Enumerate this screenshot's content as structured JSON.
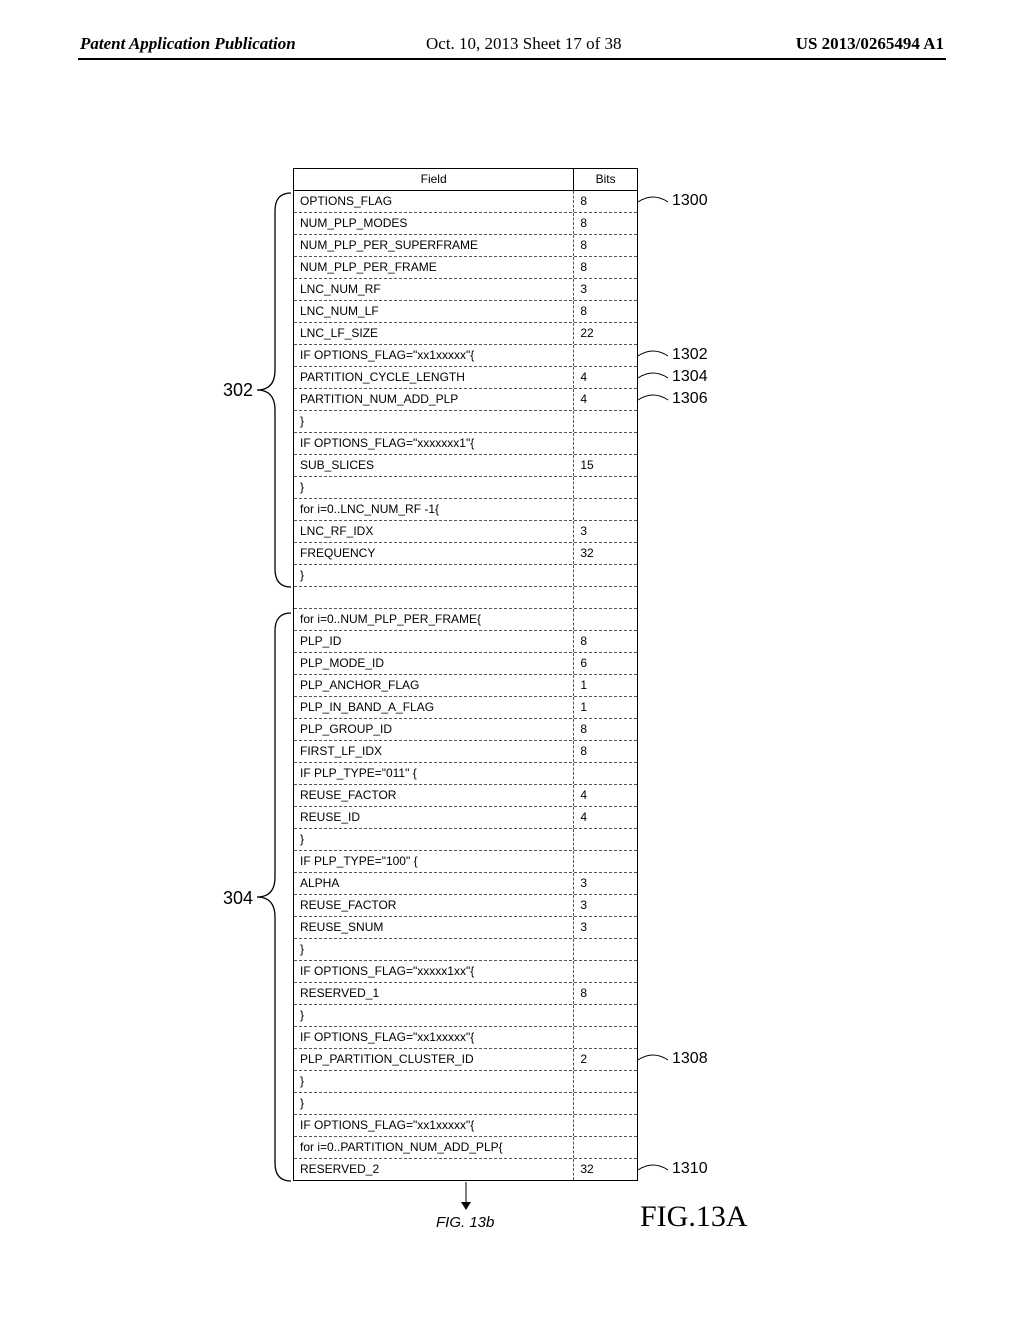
{
  "header": {
    "left": "Patent Application Publication",
    "mid": "Oct. 10, 2013  Sheet 17 of 38",
    "right": "US 2013/0265494 A1"
  },
  "braces": {
    "left1": "302",
    "left2": "304"
  },
  "callouts": {
    "r0": "1300",
    "r1": "1302",
    "r2": "1304",
    "r3": "1306",
    "r4": "1308",
    "r5": "1310"
  },
  "columns": {
    "field": "Field",
    "bits": "Bits"
  },
  "rows": [
    {
      "f": "OPTIONS_FLAG",
      "b": "8"
    },
    {
      "f": "NUM_PLP_MODES",
      "b": "8"
    },
    {
      "f": "NUM_PLP_PER_SUPERFRAME",
      "b": "8"
    },
    {
      "f": "NUM_PLP_PER_FRAME",
      "b": "8"
    },
    {
      "f": "LNC_NUM_RF",
      "b": "3"
    },
    {
      "f": "LNC_NUM_LF",
      "b": "8"
    },
    {
      "f": "LNC_LF_SIZE",
      "b": "22"
    },
    {
      "f": "IF OPTIONS_FLAG=\"xx1xxxxx\"{",
      "b": ""
    },
    {
      "f": "PARTITION_CYCLE_LENGTH",
      "b": "4"
    },
    {
      "f": "PARTITION_NUM_ADD_PLP",
      "b": "4"
    },
    {
      "f": "}",
      "b": ""
    },
    {
      "f": "IF    OPTIONS_FLAG=\"xxxxxxx1\"{",
      "b": ""
    },
    {
      "f": "SUB_SLICES",
      "b": "15"
    },
    {
      "f": "}",
      "b": ""
    },
    {
      "f": "for i=0..LNC_NUM_RF  -1{",
      "b": ""
    },
    {
      "f": "LNC_RF_IDX",
      "b": "3"
    },
    {
      "f": "FREQUENCY",
      "b": "32"
    },
    {
      "f": "}",
      "b": ""
    },
    {
      "f": "",
      "b": ""
    },
    {
      "f": "for i=0..NUM_PLP_PER_FRAME{",
      "b": ""
    },
    {
      "f": "PLP_ID",
      "b": "8"
    },
    {
      "f": "PLP_MODE_ID",
      "b": "6"
    },
    {
      "f": "PLP_ANCHOR_FLAG",
      "b": "1"
    },
    {
      "f": "PLP_IN_BAND_A_FLAG",
      "b": "1"
    },
    {
      "f": "PLP_GROUP_ID",
      "b": "8"
    },
    {
      "f": "FIRST_LF_IDX",
      "b": "8"
    },
    {
      "f": "IF PLP_TYPE=\"011\" {",
      "b": ""
    },
    {
      "f": "REUSE_FACTOR",
      "b": "4"
    },
    {
      "f": "REUSE_ID",
      "b": "4"
    },
    {
      "f": "}",
      "b": ""
    },
    {
      "f": "IF PLP_TYPE=\"100\" {",
      "b": ""
    },
    {
      "f": "ALPHA",
      "b": "3"
    },
    {
      "f": "REUSE_FACTOR",
      "b": "3"
    },
    {
      "f": "REUSE_SNUM",
      "b": "3"
    },
    {
      "f": "}",
      "b": ""
    },
    {
      "f": "IF OPTIONS_FLAG=\"xxxxx1xx\"{",
      "b": ""
    },
    {
      "f": "RESERVED_1",
      "b": "8"
    },
    {
      "f": "}",
      "b": ""
    },
    {
      "f": "IF OPTIONS_FLAG=\"xx1xxxxx\"{",
      "b": ""
    },
    {
      "f": "PLP_PARTITION_CLUSTER_ID",
      "b": "2"
    },
    {
      "f": "}",
      "b": ""
    },
    {
      "f": "}",
      "b": ""
    },
    {
      "f": "IF OPTIONS_FLAG=\"xx1xxxxx\"{",
      "b": ""
    },
    {
      "f": "for i=0..PARTITION_NUM_ADD_PLP{",
      "b": ""
    },
    {
      "f": "RESERVED_2",
      "b": "32"
    }
  ],
  "fig": {
    "big": "FIG.13A",
    "small": "FIG. 13b"
  }
}
